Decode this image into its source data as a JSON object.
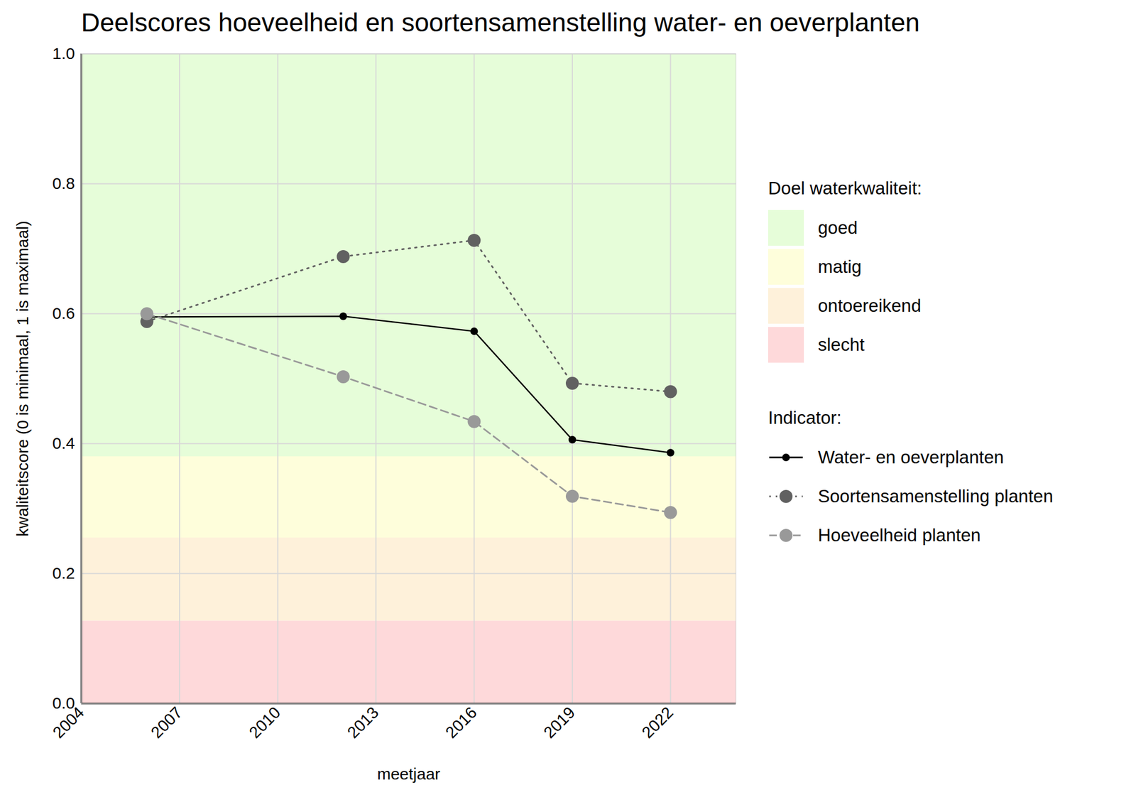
{
  "chart_data": {
    "type": "line",
    "title": "Deelscores hoeveelheid en soortensamenstelling water- en oeverplanten",
    "x_label": "meetjaar",
    "y_label": "kwaliteitscore (0 is minimaal, 1 is maximaal)",
    "x": [
      2006,
      2012,
      2016,
      2019,
      2022
    ],
    "series": [
      {
        "name": "Water- en oeverplanten",
        "color": "#000000",
        "marker": "circle",
        "line_style": "solid",
        "values": [
          0.595,
          0.596,
          0.573,
          0.406,
          0.386
        ]
      },
      {
        "name": "Soortensamenstelling planten",
        "color": "#616161",
        "marker": "circle",
        "line_style": "dotted",
        "values": [
          0.588,
          0.688,
          0.713,
          0.493,
          0.48
        ]
      },
      {
        "name": "Hoeveelheid planten",
        "color": "#999999",
        "marker": "circle",
        "line_style": "dashed",
        "values": [
          0.6,
          0.503,
          0.434,
          0.319,
          0.294
        ]
      }
    ],
    "bands_title": "Doel waterkwaliteit:",
    "bands": [
      {
        "name": "goed",
        "color": "#e6fdd9",
        "from": 0.38,
        "to": 1.0
      },
      {
        "name": "matig",
        "color": "#fefedb",
        "from": 0.255,
        "to": 0.38
      },
      {
        "name": "ontoereikend",
        "color": "#fef1da",
        "from": 0.127,
        "to": 0.255
      },
      {
        "name": "slecht",
        "color": "#fed9da",
        "from": 0,
        "to": 0.127
      }
    ],
    "legend_title": "Indicator:",
    "legend": "right",
    "grid": true,
    "xlim": [
      2004,
      2024
    ],
    "xticks": [
      2004,
      2007,
      2010,
      2013,
      2016,
      2019,
      2022
    ],
    "ylim": [
      0,
      1
    ],
    "yticks": [
      {
        "value": 0,
        "label": "0.0"
      },
      {
        "value": 0.2,
        "label": "0.2"
      },
      {
        "value": 0.4,
        "label": "0.4"
      },
      {
        "value": 0.6,
        "label": "0.6"
      },
      {
        "value": 0.8,
        "label": "0.8"
      },
      {
        "value": 1,
        "label": "1.0"
      }
    ]
  }
}
